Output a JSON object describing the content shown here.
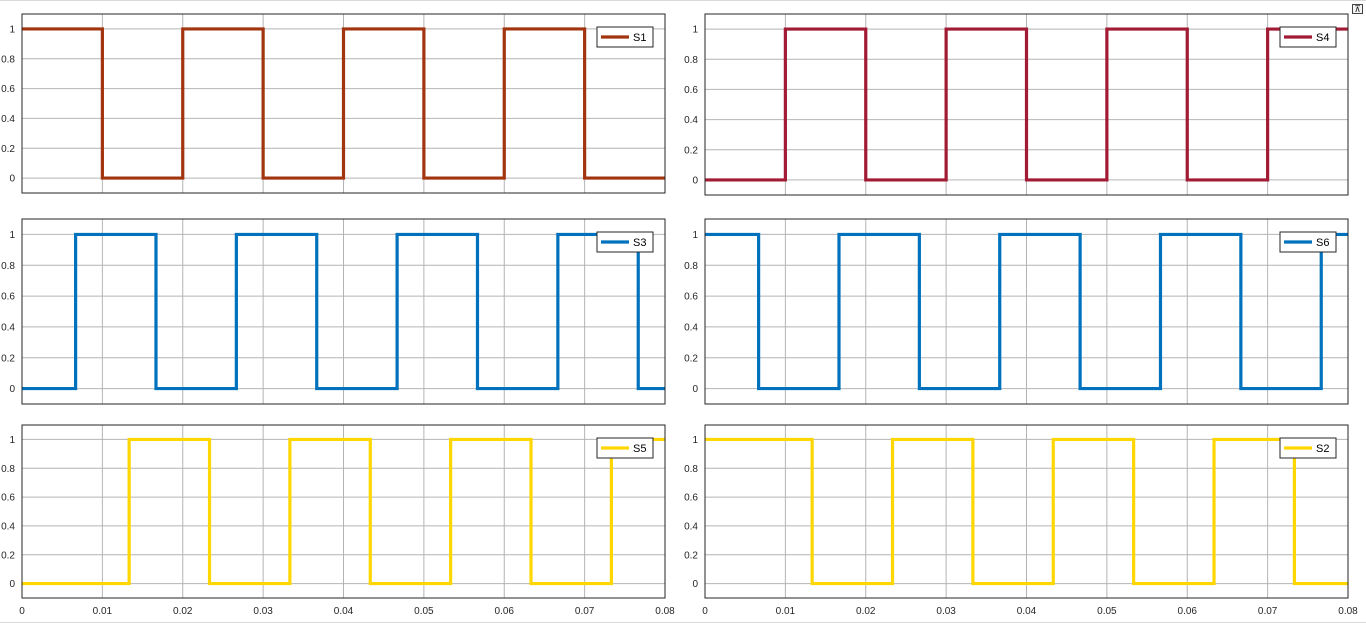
{
  "toolbar": {
    "restore_icon": "restore-icon"
  },
  "chart_data": [
    {
      "type": "line",
      "series": [
        {
          "name": "S1",
          "color": "#A2340F",
          "step_points": [
            [
              0,
              1
            ],
            [
              0.01,
              0
            ],
            [
              0.02,
              1
            ],
            [
              0.03,
              0
            ],
            [
              0.04,
              1
            ],
            [
              0.05,
              0
            ],
            [
              0.06,
              1
            ],
            [
              0.07,
              0
            ],
            [
              0.08,
              0
            ]
          ]
        }
      ],
      "xlim": [
        0,
        0.08
      ],
      "ylim": [
        -0.1,
        1.1
      ],
      "yticks": [
        "0",
        "0.2",
        "0.4",
        "0.6",
        "0.8",
        "1"
      ],
      "xticks": [],
      "grid": true,
      "legend": "top-right"
    },
    {
      "type": "line",
      "series": [
        {
          "name": "S4",
          "color": "#A21A33",
          "step_points": [
            [
              0,
              0
            ],
            [
              0.01,
              1
            ],
            [
              0.02,
              0
            ],
            [
              0.03,
              1
            ],
            [
              0.04,
              0
            ],
            [
              0.05,
              1
            ],
            [
              0.06,
              0
            ],
            [
              0.07,
              1
            ],
            [
              0.08,
              1
            ]
          ]
        }
      ],
      "xlim": [
        0,
        0.08
      ],
      "ylim": [
        -0.1,
        1.1
      ],
      "yticks": [
        "0",
        "0.2",
        "0.4",
        "0.6",
        "0.8",
        "1"
      ],
      "xticks": [],
      "grid": true,
      "legend": "top-right"
    },
    {
      "type": "line",
      "series": [
        {
          "name": "S3",
          "color": "#0072BD",
          "step_points": [
            [
              0,
              0
            ],
            [
              0.00667,
              1
            ],
            [
              0.01667,
              0
            ],
            [
              0.02667,
              1
            ],
            [
              0.03667,
              0
            ],
            [
              0.04667,
              1
            ],
            [
              0.05667,
              0
            ],
            [
              0.06667,
              1
            ],
            [
              0.07667,
              0
            ],
            [
              0.08,
              0
            ]
          ]
        }
      ],
      "xlim": [
        0,
        0.08
      ],
      "ylim": [
        -0.1,
        1.1
      ],
      "yticks": [
        "0",
        "0.2",
        "0.4",
        "0.6",
        "0.8",
        "1"
      ],
      "xticks": [],
      "grid": true,
      "legend": "top-right"
    },
    {
      "type": "line",
      "series": [
        {
          "name": "S6",
          "color": "#0072BD",
          "step_points": [
            [
              0,
              1
            ],
            [
              0.00667,
              0
            ],
            [
              0.01667,
              1
            ],
            [
              0.02667,
              0
            ],
            [
              0.03667,
              1
            ],
            [
              0.04667,
              0
            ],
            [
              0.05667,
              1
            ],
            [
              0.06667,
              0
            ],
            [
              0.07667,
              1
            ],
            [
              0.08,
              1
            ]
          ]
        }
      ],
      "xlim": [
        0,
        0.08
      ],
      "ylim": [
        -0.1,
        1.1
      ],
      "yticks": [
        "0",
        "0.2",
        "0.4",
        "0.6",
        "0.8",
        "1"
      ],
      "xticks": [],
      "grid": true,
      "legend": "top-right"
    },
    {
      "type": "line",
      "series": [
        {
          "name": "S5",
          "color": "#FFD700",
          "step_points": [
            [
              0,
              0
            ],
            [
              0.01333,
              1
            ],
            [
              0.02333,
              0
            ],
            [
              0.03333,
              1
            ],
            [
              0.04333,
              0
            ],
            [
              0.05333,
              1
            ],
            [
              0.06333,
              0
            ],
            [
              0.07333,
              1
            ],
            [
              0.08,
              1
            ]
          ]
        }
      ],
      "xlim": [
        0,
        0.08
      ],
      "ylim": [
        -0.1,
        1.1
      ],
      "yticks": [
        "0",
        "0.2",
        "0.4",
        "0.6",
        "0.8",
        "1"
      ],
      "xticks": [
        "0",
        "0.01",
        "0.02",
        "0.03",
        "0.04",
        "0.05",
        "0.06",
        "0.07",
        "0.08"
      ],
      "grid": true,
      "legend": "top-right"
    },
    {
      "type": "line",
      "series": [
        {
          "name": "S2",
          "color": "#FFD700",
          "step_points": [
            [
              0,
              1
            ],
            [
              0.01333,
              0
            ],
            [
              0.02333,
              1
            ],
            [
              0.03333,
              0
            ],
            [
              0.04333,
              1
            ],
            [
              0.05333,
              0
            ],
            [
              0.06333,
              1
            ],
            [
              0.07333,
              0
            ],
            [
              0.08,
              0
            ]
          ]
        }
      ],
      "xlim": [
        0,
        0.08
      ],
      "ylim": [
        -0.1,
        1.1
      ],
      "yticks": [
        "0",
        "0.2",
        "0.4",
        "0.6",
        "0.8",
        "1"
      ],
      "xticks": [
        "0",
        "0.01",
        "0.02",
        "0.03",
        "0.04",
        "0.05",
        "0.06",
        "0.07",
        "0.08"
      ],
      "grid": true,
      "legend": "top-right"
    }
  ]
}
